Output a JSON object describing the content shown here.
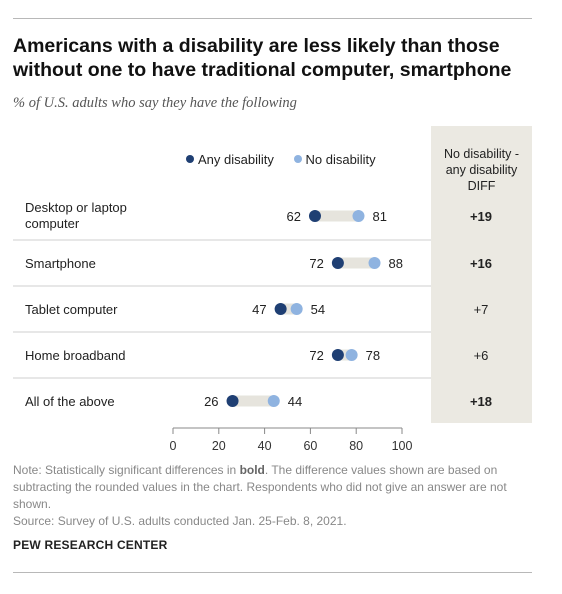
{
  "title": "Americans with a disability are less likely than those without one to have traditional computer, smartphone",
  "subtitle": "% of U.S. adults who say they have the following",
  "colors": {
    "any_disability": "#1f3f73",
    "no_disability": "#8fb3e0",
    "connector": "#e6e4dd",
    "diff_panel": "#ebe9e2"
  },
  "diff_header": [
    "No disability -",
    "any disability",
    "DIFF"
  ],
  "note": {
    "prefix": "Note: Statistically significant differences in ",
    "bold": "bold",
    "suffix": ". The difference values shown are based on subtracting the rounded values in the chart. Respondents who did not give an answer are not shown."
  },
  "source": "Survey of U.S. adults conducted Jan. 25-Feb. 8, 2021.",
  "brand": "PEW RESEARCH CENTER",
  "chart_data": {
    "type": "dot",
    "categories": [
      [
        "Desktop or laptop",
        "computer"
      ],
      [
        "Smartphone"
      ],
      [
        "Tablet computer"
      ],
      [
        "Home broadband"
      ],
      [
        "All of the above"
      ]
    ],
    "series": [
      {
        "name": "Any disability",
        "values": [
          62,
          72,
          47,
          72,
          26
        ]
      },
      {
        "name": "No disability",
        "values": [
          81,
          88,
          54,
          78,
          44
        ]
      }
    ],
    "diff": [
      "+19",
      "+16",
      "+7",
      "+6",
      "+18"
    ],
    "diff_significant": [
      true,
      true,
      false,
      false,
      true
    ],
    "xlim": [
      0,
      100
    ],
    "xticks": [
      "0",
      "20",
      "40",
      "60",
      "80",
      "100"
    ],
    "legend_position": "top"
  }
}
